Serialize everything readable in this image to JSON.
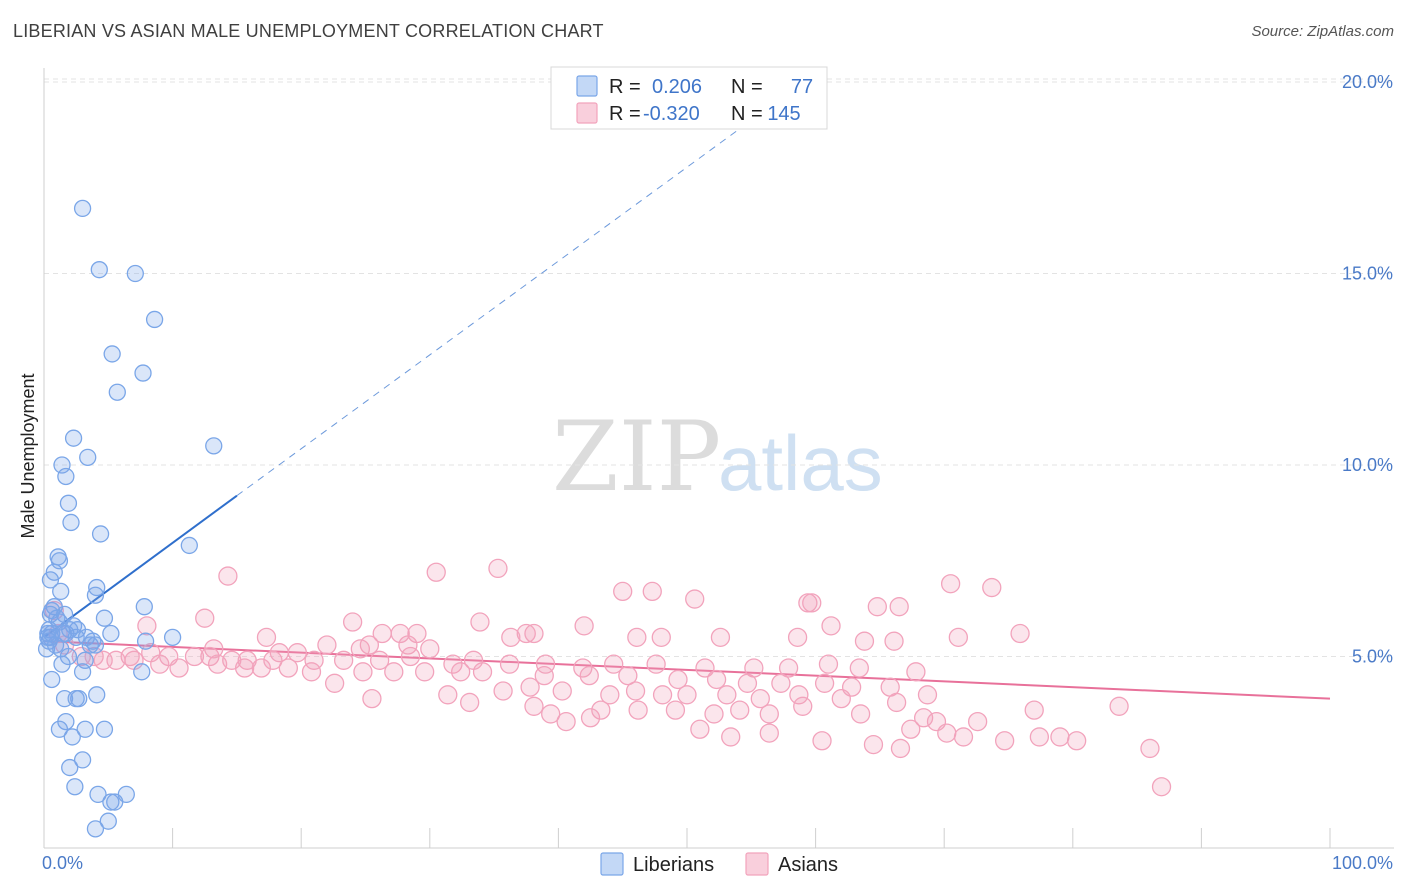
{
  "header": {
    "title": "LIBERIAN VS ASIAN MALE UNEMPLOYMENT CORRELATION CHART",
    "source": "Source: ZipAtlas.com"
  },
  "watermark": {
    "zip": "ZIP",
    "atlas": "atlas"
  },
  "legend_box": {
    "rows": [
      {
        "r_label": "R =",
        "r_value": "0.206",
        "n_label": "N =",
        "n_value": "77",
        "color": "#7aa6e8"
      },
      {
        "r_label": "R =",
        "r_value": "-0.320",
        "n_label": "N =",
        "n_value": "145",
        "color": "#f2a3bc"
      }
    ]
  },
  "bottom_legend": {
    "items": [
      "Liberians",
      "Asians"
    ]
  },
  "chart_data": {
    "type": "scatter",
    "title": "LIBERIAN VS ASIAN MALE UNEMPLOYMENT CORRELATION CHART",
    "xlabel": "",
    "ylabel": "Male Unemployment",
    "xlim": [
      0,
      100
    ],
    "ylim": [
      0,
      20.7
    ],
    "x_tick_labels": [
      "0.0%",
      "100.0%"
    ],
    "y_ticks": [
      5,
      10,
      15,
      20
    ],
    "y_tick_labels": [
      "5.0%",
      "10.0%",
      "15.0%",
      "20.0%"
    ],
    "grid": true,
    "legend_position": "bottom-center",
    "colors": {
      "liberians": "#7aa6e8",
      "asians": "#f2a3bc",
      "liberian_trend": "#2f6fcc",
      "asian_trend": "#e8719a"
    },
    "series": [
      {
        "name": "Liberians",
        "r": 0.206,
        "n": 77,
        "trend": {
          "x": [
            0,
            15
          ],
          "y": [
            5.5,
            9.2
          ],
          "dashed_extension": {
            "x": [
              15,
              55
            ],
            "y": [
              9.2,
              19.0
            ]
          }
        },
        "points": [
          [
            3.0,
            16.7
          ],
          [
            4.3,
            15.1
          ],
          [
            7.1,
            15.0
          ],
          [
            8.6,
            13.8
          ],
          [
            5.3,
            12.9
          ],
          [
            7.7,
            12.4
          ],
          [
            5.7,
            11.9
          ],
          [
            13.2,
            10.5
          ],
          [
            2.3,
            10.7
          ],
          [
            3.4,
            10.2
          ],
          [
            1.4,
            10.0
          ],
          [
            1.7,
            9.7
          ],
          [
            1.9,
            9.0
          ],
          [
            2.1,
            8.5
          ],
          [
            4.4,
            8.2
          ],
          [
            11.3,
            7.9
          ],
          [
            1.1,
            7.6
          ],
          [
            1.2,
            7.5
          ],
          [
            0.8,
            7.2
          ],
          [
            0.5,
            7.0
          ],
          [
            1.3,
            6.7
          ],
          [
            4.1,
            6.8
          ],
          [
            4.0,
            6.6
          ],
          [
            7.8,
            6.3
          ],
          [
            0.8,
            6.3
          ],
          [
            0.6,
            6.2
          ],
          [
            0.5,
            6.1
          ],
          [
            1.6,
            6.1
          ],
          [
            1.0,
            6.0
          ],
          [
            4.7,
            6.0
          ],
          [
            1.2,
            5.9
          ],
          [
            0.4,
            5.7
          ],
          [
            2.3,
            5.8
          ],
          [
            0.3,
            5.6
          ],
          [
            1.7,
            5.6
          ],
          [
            2.6,
            5.7
          ],
          [
            5.2,
            5.6
          ],
          [
            0.3,
            5.5
          ],
          [
            0.5,
            5.5
          ],
          [
            2.5,
            5.5
          ],
          [
            3.3,
            5.5
          ],
          [
            3.8,
            5.4
          ],
          [
            7.9,
            5.4
          ],
          [
            10.0,
            5.5
          ],
          [
            0.4,
            5.4
          ],
          [
            1.3,
            5.2
          ],
          [
            3.6,
            5.3
          ],
          [
            0.2,
            5.2
          ],
          [
            4.0,
            5.3
          ],
          [
            1.9,
            5.0
          ],
          [
            3.2,
            4.9
          ],
          [
            1.4,
            4.8
          ],
          [
            7.6,
            4.6
          ],
          [
            3.0,
            4.6
          ],
          [
            0.6,
            4.4
          ],
          [
            2.7,
            3.9
          ],
          [
            4.1,
            4.0
          ],
          [
            1.6,
            3.9
          ],
          [
            2.5,
            3.9
          ],
          [
            1.7,
            3.3
          ],
          [
            1.2,
            3.1
          ],
          [
            3.2,
            3.1
          ],
          [
            4.7,
            3.1
          ],
          [
            2.2,
            2.9
          ],
          [
            3.0,
            2.3
          ],
          [
            2.0,
            2.1
          ],
          [
            2.4,
            1.6
          ],
          [
            4.2,
            1.4
          ],
          [
            6.4,
            1.4
          ],
          [
            5.2,
            1.2
          ],
          [
            5.5,
            1.2
          ],
          [
            4.0,
            0.5
          ],
          [
            5.0,
            0.7
          ],
          [
            0.6,
            5.6
          ],
          [
            1.5,
            5.6
          ],
          [
            2.0,
            5.7
          ],
          [
            0.9,
            5.3
          ]
        ]
      },
      {
        "name": "Asians",
        "r": -0.32,
        "n": 145,
        "trend": {
          "x": [
            0,
            100
          ],
          "y": [
            5.4,
            3.9
          ]
        },
        "points": [
          [
            14.3,
            7.1
          ],
          [
            30.5,
            7.2
          ],
          [
            35.3,
            7.3
          ],
          [
            70.5,
            6.9
          ],
          [
            73.7,
            6.8
          ],
          [
            45.0,
            6.7
          ],
          [
            47.3,
            6.7
          ],
          [
            50.6,
            6.5
          ],
          [
            59.4,
            6.4
          ],
          [
            64.8,
            6.3
          ],
          [
            59.7,
            6.4
          ],
          [
            66.5,
            6.3
          ],
          [
            12.5,
            6.0
          ],
          [
            24.0,
            5.9
          ],
          [
            33.9,
            5.9
          ],
          [
            42.0,
            5.8
          ],
          [
            61.2,
            5.8
          ],
          [
            38.1,
            5.6
          ],
          [
            29.0,
            5.6
          ],
          [
            26.3,
            5.6
          ],
          [
            27.7,
            5.6
          ],
          [
            75.9,
            5.6
          ],
          [
            71.1,
            5.5
          ],
          [
            17.3,
            5.5
          ],
          [
            37.5,
            5.6
          ],
          [
            36.3,
            5.5
          ],
          [
            46.1,
            5.5
          ],
          [
            48.0,
            5.5
          ],
          [
            52.6,
            5.5
          ],
          [
            58.6,
            5.5
          ],
          [
            63.8,
            5.4
          ],
          [
            66.1,
            5.4
          ],
          [
            22.0,
            5.3
          ],
          [
            25.3,
            5.3
          ],
          [
            28.3,
            5.3
          ],
          [
            24.6,
            5.2
          ],
          [
            30.0,
            5.2
          ],
          [
            18.3,
            5.1
          ],
          [
            19.7,
            5.1
          ],
          [
            13.2,
            5.2
          ],
          [
            8.3,
            5.1
          ],
          [
            6.7,
            5.0
          ],
          [
            9.7,
            5.0
          ],
          [
            11.7,
            5.0
          ],
          [
            12.9,
            5.0
          ],
          [
            14.6,
            4.9
          ],
          [
            15.8,
            4.9
          ],
          [
            17.8,
            4.9
          ],
          [
            21.0,
            4.9
          ],
          [
            23.3,
            4.9
          ],
          [
            26.1,
            4.9
          ],
          [
            28.5,
            5.0
          ],
          [
            31.8,
            4.8
          ],
          [
            33.4,
            4.9
          ],
          [
            36.2,
            4.8
          ],
          [
            39.0,
            4.8
          ],
          [
            41.9,
            4.7
          ],
          [
            44.3,
            4.8
          ],
          [
            47.6,
            4.8
          ],
          [
            51.4,
            4.7
          ],
          [
            55.2,
            4.7
          ],
          [
            57.9,
            4.7
          ],
          [
            61.0,
            4.8
          ],
          [
            63.4,
            4.7
          ],
          [
            67.8,
            4.6
          ],
          [
            3.9,
            5.0
          ],
          [
            5.6,
            4.9
          ],
          [
            7.0,
            4.9
          ],
          [
            9.0,
            4.8
          ],
          [
            10.5,
            4.7
          ],
          [
            13.5,
            4.8
          ],
          [
            15.6,
            4.7
          ],
          [
            16.9,
            4.7
          ],
          [
            19.0,
            4.7
          ],
          [
            20.8,
            4.6
          ],
          [
            24.8,
            4.6
          ],
          [
            27.2,
            4.6
          ],
          [
            29.6,
            4.6
          ],
          [
            32.4,
            4.6
          ],
          [
            34.1,
            4.6
          ],
          [
            38.9,
            4.5
          ],
          [
            42.4,
            4.5
          ],
          [
            45.4,
            4.5
          ],
          [
            49.3,
            4.4
          ],
          [
            52.3,
            4.4
          ],
          [
            54.7,
            4.3
          ],
          [
            57.3,
            4.3
          ],
          [
            60.7,
            4.3
          ],
          [
            62.8,
            4.2
          ],
          [
            65.8,
            4.2
          ],
          [
            22.6,
            4.3
          ],
          [
            35.7,
            4.1
          ],
          [
            37.8,
            4.2
          ],
          [
            40.3,
            4.1
          ],
          [
            44.0,
            4.0
          ],
          [
            46.0,
            4.1
          ],
          [
            48.1,
            4.0
          ],
          [
            50.0,
            4.0
          ],
          [
            53.1,
            4.0
          ],
          [
            55.7,
            3.9
          ],
          [
            58.7,
            4.0
          ],
          [
            62.0,
            3.9
          ],
          [
            66.3,
            3.8
          ],
          [
            68.7,
            4.0
          ],
          [
            31.4,
            4.0
          ],
          [
            25.5,
            3.9
          ],
          [
            33.1,
            3.8
          ],
          [
            38.1,
            3.7
          ],
          [
            43.3,
            3.6
          ],
          [
            46.2,
            3.6
          ],
          [
            49.1,
            3.6
          ],
          [
            52.1,
            3.5
          ],
          [
            54.1,
            3.6
          ],
          [
            56.4,
            3.5
          ],
          [
            59.0,
            3.7
          ],
          [
            63.5,
            3.5
          ],
          [
            68.4,
            3.4
          ],
          [
            69.4,
            3.3
          ],
          [
            72.6,
            3.3
          ],
          [
            77.0,
            3.6
          ],
          [
            39.4,
            3.5
          ],
          [
            40.6,
            3.3
          ],
          [
            42.5,
            3.4
          ],
          [
            51.0,
            3.1
          ],
          [
            53.4,
            2.9
          ],
          [
            56.4,
            3.0
          ],
          [
            60.5,
            2.8
          ],
          [
            67.4,
            3.1
          ],
          [
            70.2,
            3.0
          ],
          [
            71.5,
            2.9
          ],
          [
            74.7,
            2.8
          ],
          [
            77.4,
            2.9
          ],
          [
            79.0,
            2.9
          ],
          [
            80.3,
            2.8
          ],
          [
            64.5,
            2.7
          ],
          [
            66.6,
            2.6
          ],
          [
            86.0,
            2.6
          ],
          [
            83.6,
            3.7
          ],
          [
            86.9,
            1.6
          ],
          [
            1.6,
            5.3
          ],
          [
            2.9,
            5.0
          ],
          [
            4.6,
            4.9
          ],
          [
            1.1,
            5.6
          ],
          [
            0.8,
            6.2
          ],
          [
            8.0,
            5.8
          ]
        ]
      }
    ]
  }
}
